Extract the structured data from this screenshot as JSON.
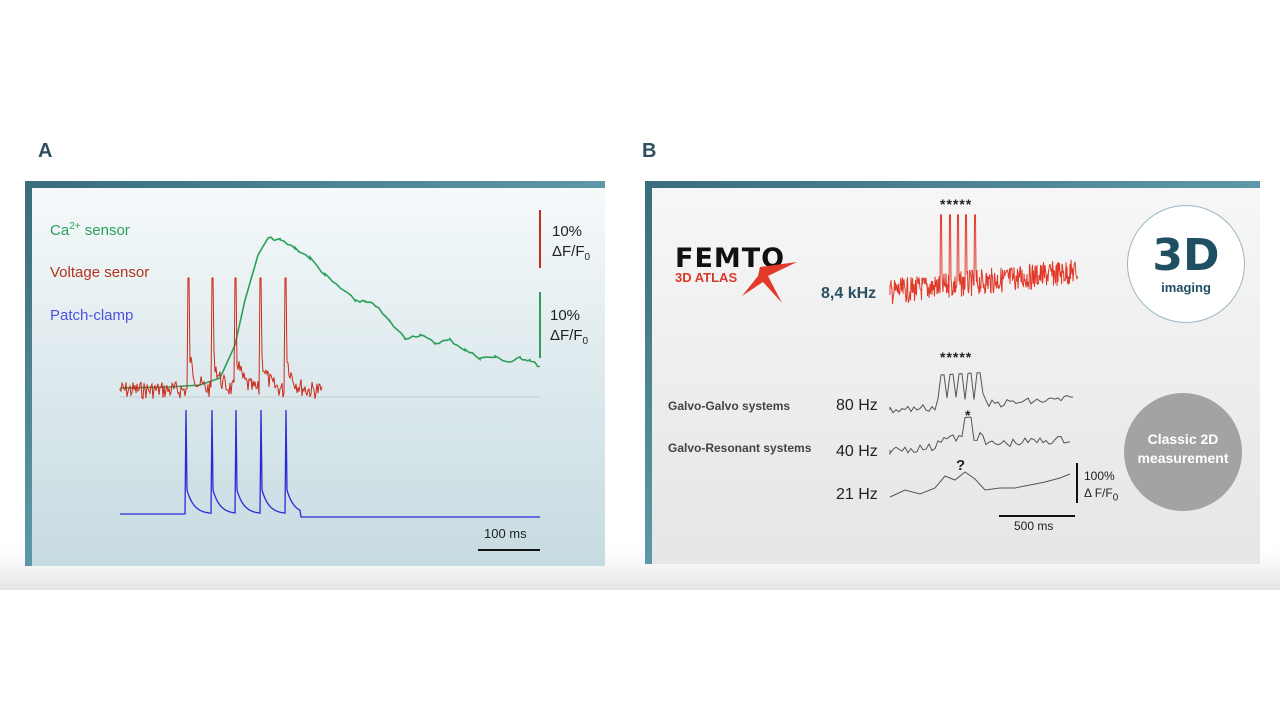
{
  "panels": {
    "a_label": "A",
    "b_label": "B"
  },
  "panel_a": {
    "legend": {
      "ca_prefix": "Ca",
      "ca_sup": "2+",
      "ca_suffix": " sensor",
      "voltage": "Voltage sensor",
      "patch": "Patch-clamp"
    },
    "scale_red": {
      "pct": "10%",
      "frac": "ΔF/F",
      "sub": "0"
    },
    "scale_green": {
      "pct": "10%",
      "frac": "ΔF/F",
      "sub": "0"
    },
    "time_bar": "100 ms"
  },
  "panel_b": {
    "logo": {
      "brand": "FEMTO",
      "product": "3D ATLAS"
    },
    "freq_main": "8,4 kHz",
    "stars_top": "*****",
    "stars_mid": "*****",
    "star_single": "*",
    "question": "?",
    "rows": [
      {
        "system": "Galvo-Galvo systems",
        "freq": "80 Hz"
      },
      {
        "system": "Galvo-Resonant systems",
        "freq": "40 Hz"
      },
      {
        "system": "",
        "freq": "21 Hz"
      }
    ],
    "scale_amp": {
      "pct": "100%",
      "frac": "Δ F/F",
      "sub": "0"
    },
    "time_bar": "500 ms",
    "badge_3d": {
      "big": "3D",
      "small": "imaging"
    },
    "badge_2d": {
      "line1": "Classic 2D",
      "line2": "measurement"
    }
  },
  "chart_data": [
    {
      "type": "line",
      "panel": "A",
      "title": "",
      "series": [
        {
          "name": "Ca2+ sensor",
          "color": "#2aa05a",
          "shape": "slow transient rising after spikes, decaying with noise"
        },
        {
          "name": "Voltage sensor",
          "color": "#cc2a1a",
          "spike_count": 5,
          "shape": "noisy baseline with 5 sharp spikes"
        },
        {
          "name": "Patch-clamp",
          "color": "#2a2ad8",
          "spike_count": 5,
          "shape": "flat baseline with 5 action potentials"
        }
      ],
      "scale_bars": [
        "10% ΔF/F0",
        "10% ΔF/F0",
        "100 ms"
      ]
    },
    {
      "type": "line",
      "panel": "B",
      "title": "",
      "series": [
        {
          "name": "8,4 kHz",
          "color": "#e23a2a",
          "spike_count": 5
        },
        {
          "name": "80 Hz",
          "color": "#555555",
          "spike_count": 5
        },
        {
          "name": "40 Hz",
          "color": "#555555",
          "spike_count": 1
        },
        {
          "name": "21 Hz",
          "color": "#555555",
          "spike_count": 0
        }
      ],
      "scale_bars": [
        "100% Δ F/F0",
        "500 ms"
      ]
    }
  ]
}
